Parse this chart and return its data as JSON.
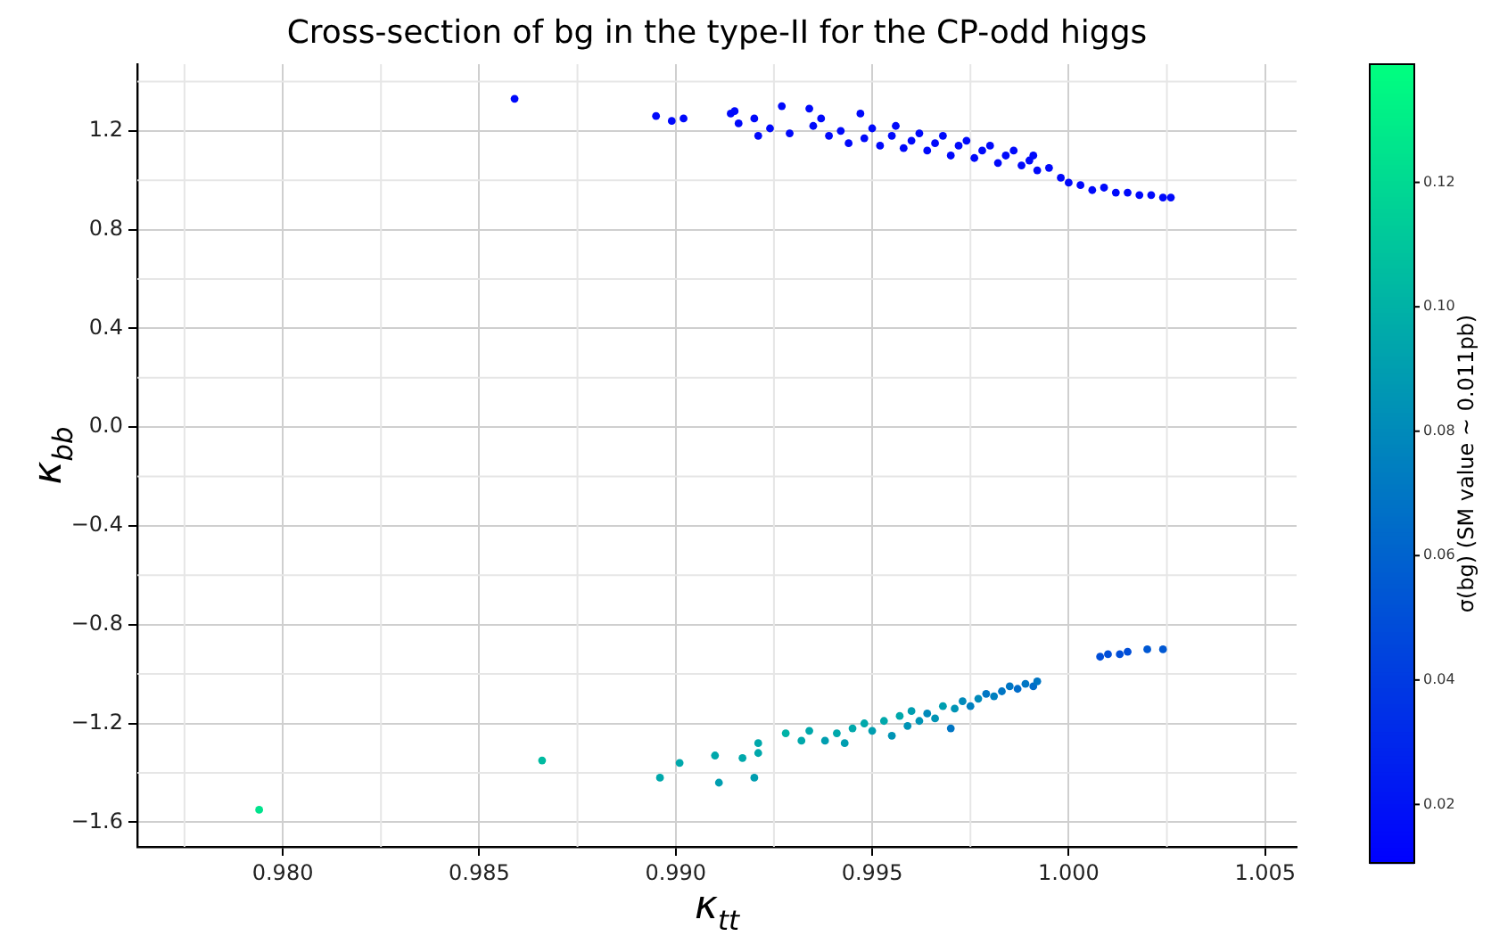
{
  "chart_data": {
    "type": "scatter",
    "title": "Cross-section of bg in the type-II for the CP-odd higgs",
    "xlabel": "κ$_{tt}$",
    "ylabel": "κ$_{bb}$",
    "clabel": "σ(bg) (SM value ~ 0.011pb)",
    "marker": "circle",
    "grid": true,
    "xlim": [
      0.9763,
      1.0058
    ],
    "ylim": [
      -1.7,
      1.47
    ],
    "clim": [
      0.0106,
      0.139
    ],
    "xticks": [
      {
        "value": 0.98,
        "label": "0.980"
      },
      {
        "value": 0.985,
        "label": "0.985"
      },
      {
        "value": 0.99,
        "label": "0.990"
      },
      {
        "value": 0.995,
        "label": "0.995"
      },
      {
        "value": 1.0,
        "label": "1.000"
      },
      {
        "value": 1.005,
        "label": "1.005"
      }
    ],
    "yticks": [
      {
        "value": -1.6,
        "label": "−1.6"
      },
      {
        "value": -1.2,
        "label": "−1.2"
      },
      {
        "value": -0.8,
        "label": "−0.8"
      },
      {
        "value": -0.4,
        "label": "−0.4"
      },
      {
        "value": 0,
        "label": "0.0"
      },
      {
        "value": 0.4,
        "label": "0.4"
      },
      {
        "value": 0.8,
        "label": "0.8"
      },
      {
        "value": 1.2,
        "label": "1.2"
      }
    ],
    "cticks": [
      0.02,
      0.04,
      0.06,
      0.08,
      {
        "value": 0.1,
        "label": "0.10"
      },
      0.12
    ],
    "x": [
      0.9859,
      0.9895,
      0.9899,
      0.9902,
      0.9914,
      0.9915,
      0.9916,
      0.992,
      0.9921,
      0.9924,
      0.9927,
      0.9929,
      0.9934,
      0.9935,
      0.9937,
      0.9939,
      0.9942,
      0.9944,
      0.9947,
      0.9948,
      0.995,
      0.9952,
      0.9955,
      0.9956,
      0.9958,
      0.996,
      0.9962,
      0.9964,
      0.9966,
      0.9968,
      0.997,
      0.9972,
      0.9974,
      0.9976,
      0.9978,
      0.998,
      0.9982,
      0.9984,
      0.9986,
      0.9988,
      0.999,
      0.9991,
      0.9992,
      0.9995,
      0.9998,
      1.0,
      1.0003,
      1.0006,
      1.0009,
      1.0012,
      1.0015,
      1.0018,
      1.0021,
      1.0024,
      1.0026,
      0.9794,
      0.9866,
      0.9896,
      0.9901,
      0.991,
      0.9911,
      0.9917,
      0.992,
      0.9921,
      0.9921,
      0.9928,
      0.9932,
      0.9934,
      0.9938,
      0.9941,
      0.9943,
      0.9945,
      0.9948,
      0.995,
      0.9953,
      0.9955,
      0.9957,
      0.9959,
      0.996,
      0.9962,
      0.9964,
      0.9966,
      0.9968,
      0.997,
      0.9971,
      0.9973,
      0.9975,
      0.9977,
      0.9979,
      0.9981,
      0.9983,
      0.9985,
      0.9987,
      0.9989,
      0.9991,
      0.9992,
      1.0008,
      1.001,
      1.0013,
      1.0015,
      1.002,
      1.0024
    ],
    "values": [
      1.33,
      1.26,
      1.24,
      1.25,
      1.27,
      1.28,
      1.23,
      1.25,
      1.18,
      1.21,
      1.3,
      1.19,
      1.29,
      1.22,
      1.25,
      1.18,
      1.2,
      1.15,
      1.27,
      1.17,
      1.21,
      1.14,
      1.18,
      1.22,
      1.13,
      1.16,
      1.19,
      1.12,
      1.15,
      1.18,
      1.1,
      1.14,
      1.16,
      1.09,
      1.12,
      1.14,
      1.07,
      1.1,
      1.12,
      1.06,
      1.08,
      1.1,
      1.04,
      1.05,
      1.01,
      0.99,
      0.98,
      0.96,
      0.97,
      0.95,
      0.95,
      0.94,
      0.94,
      0.93,
      0.93,
      -1.55,
      -1.35,
      -1.42,
      -1.36,
      -1.33,
      -1.44,
      -1.34,
      -1.42,
      -1.28,
      -1.32,
      -1.24,
      -1.27,
      -1.23,
      -1.27,
      -1.24,
      -1.28,
      -1.22,
      -1.2,
      -1.23,
      -1.19,
      -1.25,
      -1.17,
      -1.21,
      -1.15,
      -1.19,
      -1.16,
      -1.18,
      -1.13,
      -1.22,
      -1.14,
      -1.11,
      -1.13,
      -1.1,
      -1.08,
      -1.09,
      -1.07,
      -1.05,
      -1.06,
      -1.04,
      -1.05,
      -1.03,
      -0.93,
      -0.92,
      -0.92,
      -0.91,
      -0.9,
      -0.9
    ],
    "cvalues": [
      0.015,
      0.015,
      0.015,
      0.015,
      0.015,
      0.015,
      0.015,
      0.015,
      0.015,
      0.015,
      0.015,
      0.015,
      0.015,
      0.015,
      0.015,
      0.015,
      0.015,
      0.015,
      0.015,
      0.015,
      0.015,
      0.015,
      0.015,
      0.015,
      0.015,
      0.015,
      0.015,
      0.015,
      0.015,
      0.015,
      0.015,
      0.015,
      0.015,
      0.015,
      0.015,
      0.015,
      0.015,
      0.015,
      0.015,
      0.015,
      0.015,
      0.015,
      0.015,
      0.015,
      0.015,
      0.015,
      0.015,
      0.015,
      0.015,
      0.015,
      0.015,
      0.015,
      0.015,
      0.015,
      0.015,
      0.125,
      0.105,
      0.095,
      0.095,
      0.095,
      0.09,
      0.095,
      0.09,
      0.095,
      0.095,
      0.1,
      0.095,
      0.095,
      0.09,
      0.095,
      0.09,
      0.095,
      0.095,
      0.09,
      0.095,
      0.085,
      0.095,
      0.085,
      0.09,
      0.085,
      0.08,
      0.085,
      0.09,
      0.07,
      0.085,
      0.08,
      0.075,
      0.08,
      0.07,
      0.075,
      0.07,
      0.07,
      0.065,
      0.07,
      0.065,
      0.07,
      0.05,
      0.05,
      0.05,
      0.05,
      0.055,
      0.055
    ]
  }
}
